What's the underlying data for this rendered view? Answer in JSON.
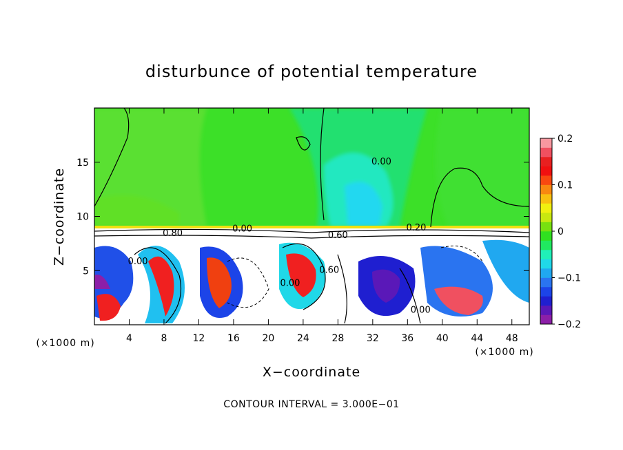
{
  "chart_data": {
    "type": "heatmap",
    "title": "disturbunce of potential temperature",
    "xlabel": "X−coordinate",
    "ylabel": "Z−coordinate",
    "x_unit": "(×1000 m)",
    "y_unit": "(×1000 m)",
    "xlim": [
      0,
      50
    ],
    "ylim": [
      0,
      20
    ],
    "x_ticks": [
      4,
      8,
      12,
      16,
      20,
      24,
      28,
      32,
      36,
      40,
      44,
      48
    ],
    "y_ticks": [
      5,
      10,
      15
    ],
    "colorbar": {
      "range": [
        -0.2,
        0.2
      ],
      "ticks": [
        {
          "value": 0.2,
          "label": "0.2"
        },
        {
          "value": 0.1,
          "label": "0.1"
        },
        {
          "value": 0,
          "label": "0"
        },
        {
          "value": -0.1,
          "label": "−0.1"
        },
        {
          "value": -0.2,
          "label": "−0.2"
        }
      ],
      "colors": [
        "#8c1fa8",
        "#5a18b8",
        "#1f1fd0",
        "#1c44e8",
        "#2a74f0",
        "#20a8f0",
        "#20d8e8",
        "#20f0b8",
        "#20e860",
        "#30e020",
        "#78e010",
        "#c8e810",
        "#f0f010",
        "#f8c010",
        "#f88810",
        "#f84810",
        "#f01010",
        "#e82020",
        "#f05060",
        "#f898a0"
      ]
    },
    "contour_labels": [
      {
        "text": "0.00",
        "x": 33.0,
        "y": 14.8
      },
      {
        "text": "0.00",
        "x": 17.0,
        "y": 8.6
      },
      {
        "text": "0.00",
        "x": 5.0,
        "y": 5.6
      },
      {
        "text": "0.00",
        "x": 22.5,
        "y": 3.6
      },
      {
        "text": "0.60",
        "x": 27.0,
        "y": 4.8
      },
      {
        "text": "0.00",
        "x": 37.5,
        "y": 1.1
      },
      {
        "text": "0.20",
        "x": 37.0,
        "y": 8.7
      },
      {
        "text": "0.80",
        "x": 9.0,
        "y": 8.2
      },
      {
        "text": "0.60",
        "x": 28.0,
        "y": 8.0
      }
    ],
    "footnote": "CONTOUR INTERVAL = 3.000E−01"
  }
}
